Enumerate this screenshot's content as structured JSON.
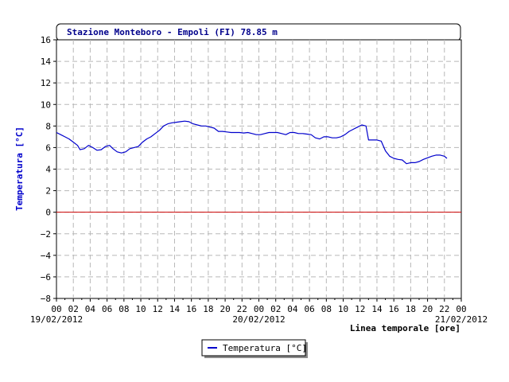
{
  "chart_data": {
    "type": "line",
    "title": "Stazione Monteboro - Empoli (FI) 78.85 m",
    "ylabel": "Temperatura [°C]",
    "xlabel": "Linea temporale [ore]",
    "ylim": [
      -8,
      16
    ],
    "yticks": [
      -8,
      -6,
      -4,
      -2,
      0,
      2,
      4,
      6,
      8,
      10,
      12,
      14,
      16
    ],
    "ytick_labels": [
      "−8",
      "−6",
      "−4",
      "−2",
      "0",
      "2",
      "4",
      "6",
      "8",
      "10",
      "12",
      "14",
      "16"
    ],
    "xlim": [
      0,
      48
    ],
    "xticks": [
      0,
      2,
      4,
      6,
      8,
      10,
      12,
      14,
      16,
      18,
      20,
      22,
      24,
      26,
      28,
      30,
      32,
      34,
      36,
      38,
      40,
      42,
      44,
      46,
      48
    ],
    "xtick_labels": [
      "00",
      "02",
      "04",
      "06",
      "08",
      "10",
      "12",
      "14",
      "16",
      "18",
      "20",
      "22",
      "00",
      "02",
      "04",
      "06",
      "08",
      "10",
      "12",
      "14",
      "16",
      "18",
      "20",
      "22",
      "00"
    ],
    "x_unit": "hours since 19/02/2012 00:00",
    "date_labels": [
      {
        "text": "19/02/2012",
        "x": 0
      },
      {
        "text": "20/02/2012",
        "x": 24
      },
      {
        "text": "21/02/2012",
        "x": 48
      }
    ],
    "grid": true,
    "reference_line": {
      "y": 0,
      "color": "#cc0000"
    },
    "legend_position": "bottom-center",
    "series": [
      {
        "name": "Temperatura [°C]",
        "color": "#0000cc",
        "points": [
          [
            0.0,
            7.4
          ],
          [
            0.5,
            7.2
          ],
          [
            1.0,
            7.0
          ],
          [
            1.5,
            6.8
          ],
          [
            2.0,
            6.5
          ],
          [
            2.5,
            6.2
          ],
          [
            2.8,
            5.8
          ],
          [
            3.3,
            5.9
          ],
          [
            3.8,
            6.2
          ],
          [
            4.3,
            6.0
          ],
          [
            4.8,
            5.75
          ],
          [
            5.3,
            5.8
          ],
          [
            5.8,
            6.1
          ],
          [
            6.3,
            6.2
          ],
          [
            6.7,
            5.9
          ],
          [
            7.2,
            5.6
          ],
          [
            7.7,
            5.5
          ],
          [
            8.2,
            5.6
          ],
          [
            8.7,
            5.9
          ],
          [
            9.2,
            6.0
          ],
          [
            9.7,
            6.1
          ],
          [
            10.2,
            6.5
          ],
          [
            10.7,
            6.8
          ],
          [
            11.2,
            7.0
          ],
          [
            11.7,
            7.3
          ],
          [
            12.2,
            7.6
          ],
          [
            12.7,
            8.0
          ],
          [
            13.2,
            8.2
          ],
          [
            13.7,
            8.3
          ],
          [
            14.2,
            8.35
          ],
          [
            14.7,
            8.4
          ],
          [
            15.2,
            8.45
          ],
          [
            15.7,
            8.4
          ],
          [
            16.2,
            8.2
          ],
          [
            16.7,
            8.1
          ],
          [
            17.2,
            8.0
          ],
          [
            17.7,
            8.0
          ],
          [
            18.2,
            7.9
          ],
          [
            18.7,
            7.8
          ],
          [
            19.2,
            7.5
          ],
          [
            19.7,
            7.5
          ],
          [
            20.2,
            7.45
          ],
          [
            20.7,
            7.4
          ],
          [
            21.2,
            7.4
          ],
          [
            21.7,
            7.4
          ],
          [
            22.2,
            7.35
          ],
          [
            22.7,
            7.4
          ],
          [
            23.2,
            7.3
          ],
          [
            23.7,
            7.2
          ],
          [
            24.2,
            7.2
          ],
          [
            24.7,
            7.3
          ],
          [
            25.2,
            7.4
          ],
          [
            25.7,
            7.4
          ],
          [
            26.2,
            7.4
          ],
          [
            26.7,
            7.3
          ],
          [
            27.2,
            7.2
          ],
          [
            27.7,
            7.4
          ],
          [
            28.2,
            7.4
          ],
          [
            28.7,
            7.3
          ],
          [
            29.2,
            7.3
          ],
          [
            29.7,
            7.25
          ],
          [
            30.2,
            7.2
          ],
          [
            30.7,
            6.9
          ],
          [
            31.2,
            6.8
          ],
          [
            31.7,
            7.0
          ],
          [
            32.2,
            7.0
          ],
          [
            32.7,
            6.9
          ],
          [
            33.2,
            6.9
          ],
          [
            33.7,
            7.0
          ],
          [
            34.2,
            7.2
          ],
          [
            34.7,
            7.5
          ],
          [
            35.2,
            7.7
          ],
          [
            35.7,
            7.9
          ],
          [
            36.2,
            8.1
          ],
          [
            36.7,
            8.0
          ],
          [
            37.0,
            6.7
          ],
          [
            37.5,
            6.7
          ],
          [
            38.0,
            6.7
          ],
          [
            38.5,
            6.6
          ],
          [
            39.0,
            5.7
          ],
          [
            39.5,
            5.2
          ],
          [
            40.0,
            5.0
          ],
          [
            40.5,
            4.9
          ],
          [
            41.0,
            4.85
          ],
          [
            41.5,
            4.5
          ],
          [
            42.0,
            4.6
          ],
          [
            42.5,
            4.6
          ],
          [
            43.0,
            4.7
          ],
          [
            43.5,
            4.9
          ],
          [
            44.0,
            5.05
          ],
          [
            44.5,
            5.2
          ],
          [
            45.0,
            5.3
          ],
          [
            45.5,
            5.3
          ],
          [
            46.0,
            5.2
          ],
          [
            46.3,
            5.0
          ]
        ]
      }
    ]
  }
}
